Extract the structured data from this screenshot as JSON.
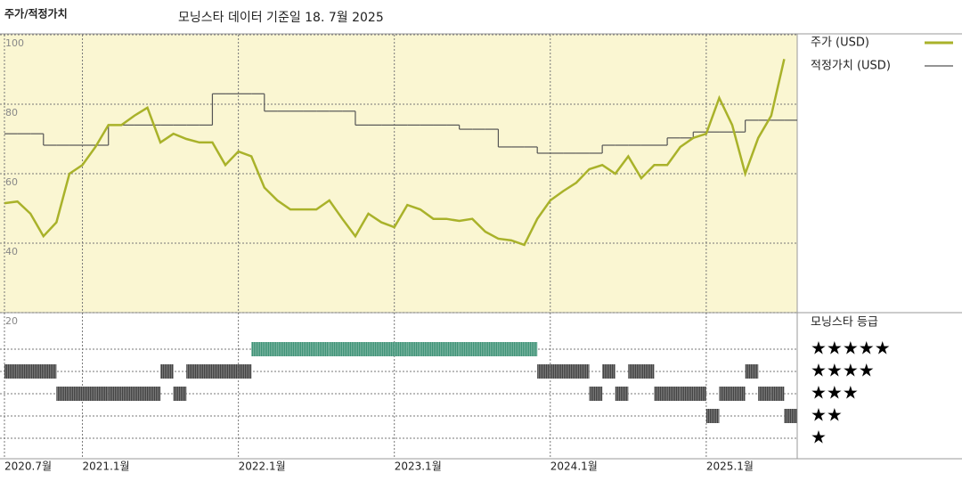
{
  "chart_data": {
    "type": "line",
    "title": "주가/적정가치",
    "subtitle": "모닝스타 데이터 기준일 18. 7월 2025",
    "x": [
      "2020-07",
      "2020-08",
      "2020-09",
      "2020-10",
      "2020-11",
      "2020-12",
      "2021-01",
      "2021-02",
      "2021-03",
      "2021-04",
      "2021-05",
      "2021-06",
      "2021-07",
      "2021-08",
      "2021-09",
      "2021-10",
      "2021-11",
      "2021-12",
      "2022-01",
      "2022-02",
      "2022-03",
      "2022-04",
      "2022-05",
      "2022-06",
      "2022-07",
      "2022-08",
      "2022-09",
      "2022-10",
      "2022-11",
      "2022-12",
      "2023-01",
      "2023-02",
      "2023-03",
      "2023-04",
      "2023-05",
      "2023-06",
      "2023-07",
      "2023-08",
      "2023-09",
      "2023-10",
      "2023-11",
      "2023-12",
      "2024-01",
      "2024-02",
      "2024-03",
      "2024-04",
      "2024-05",
      "2024-06",
      "2024-07",
      "2024-08",
      "2024-09",
      "2024-10",
      "2024-11",
      "2024-12",
      "2025-01",
      "2025-02",
      "2025-03",
      "2025-04",
      "2025-05",
      "2025-06",
      "2025-07"
    ],
    "xlim": [
      "2020-07",
      "2025-08"
    ],
    "xticks": [
      {
        "value": "2020-07",
        "label": "2020.7월"
      },
      {
        "value": "2021-01",
        "label": "2021.1월"
      },
      {
        "value": "2022-01",
        "label": "2022.1월"
      },
      {
        "value": "2023-01",
        "label": "2023.1월"
      },
      {
        "value": "2024-01",
        "label": "2024.1월"
      },
      {
        "value": "2025-01",
        "label": "2025.1월"
      }
    ],
    "ylim": [
      20,
      100
    ],
    "yticks": [
      20,
      40,
      60,
      80,
      100
    ],
    "grid": true,
    "series": [
      {
        "name": "주가 (USD)",
        "color": "#a9b22a",
        "values": [
          51.5,
          52,
          48.5,
          42,
          46,
          60,
          62.5,
          67.7,
          74,
          74,
          76.7,
          79,
          69,
          71.5,
          70,
          69,
          69,
          62.5,
          66.4,
          65,
          56,
          52.3,
          49.7,
          49.7,
          49.7,
          52.3,
          47,
          42,
          48.5,
          46,
          44.6,
          51,
          49.7,
          47,
          47,
          46.4,
          47,
          43.3,
          41.3,
          40.8,
          39.5,
          47,
          52.3,
          55,
          57.4,
          61.3,
          62.5,
          60,
          65,
          58.7,
          62.5,
          62.5,
          67.7,
          70.3,
          71.5,
          81.8,
          74,
          60,
          70.3,
          76.7,
          93
        ]
      },
      {
        "name": "적정가치 (USD)",
        "color": "#555555",
        "step": true,
        "values": [
          71.5,
          71.5,
          71.5,
          68.2,
          68.2,
          68.2,
          68.2,
          68.2,
          74,
          74,
          74,
          74,
          74,
          74,
          74,
          74,
          83,
          83,
          83,
          83,
          78,
          78,
          78,
          78,
          78,
          78,
          78,
          74,
          74,
          74,
          74,
          74,
          74,
          74,
          74,
          72.8,
          72.8,
          72.8,
          67.7,
          67.7,
          67.7,
          65.9,
          65.9,
          65.9,
          65.9,
          65.9,
          68.2,
          68.2,
          68.2,
          68.2,
          68.2,
          70.3,
          70.3,
          72,
          72,
          72,
          72,
          75.4,
          75.4,
          75.4,
          75.4
        ]
      }
    ],
    "rating": {
      "title": "모닝스타 등급",
      "levels": [
        5,
        4,
        3,
        2,
        1
      ],
      "labels": [
        "★★★★★",
        "★★★★",
        "★★★",
        "★★",
        "★"
      ],
      "colors": [
        "#333333",
        "#333333",
        "#333333",
        "#333333",
        "#2f8a6c"
      ],
      "values": [
        4,
        4,
        4,
        4,
        3,
        3,
        3,
        3,
        3,
        3,
        3,
        3,
        4,
        3,
        4,
        4,
        4,
        4,
        4,
        5,
        5,
        5,
        5,
        5,
        5,
        5,
        5,
        5,
        5,
        5,
        5,
        5,
        5,
        5,
        5,
        5,
        5,
        5,
        5,
        5,
        5,
        4,
        4,
        4,
        4,
        3,
        4,
        3,
        4,
        4,
        3,
        3,
        3,
        3,
        2,
        3,
        3,
        4,
        3,
        3,
        2
      ]
    }
  }
}
